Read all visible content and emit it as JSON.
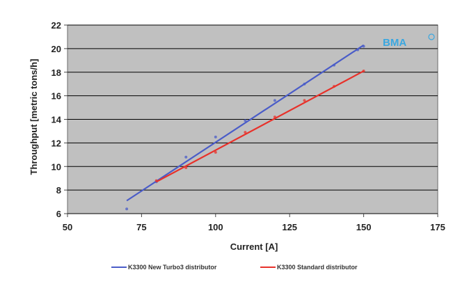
{
  "chart_data": {
    "type": "line",
    "title": "",
    "xlabel": "Current [A]",
    "ylabel": "Throughput [metric tons/h]",
    "xlim": [
      50,
      175
    ],
    "ylim": [
      6,
      22
    ],
    "xticks": [
      50,
      75,
      100,
      125,
      150,
      175
    ],
    "yticks": [
      6,
      8,
      10,
      12,
      14,
      16,
      18,
      20,
      22
    ],
    "grid": "horizontal",
    "legend_position": "bottom",
    "logo": "BMA",
    "series": [
      {
        "name": "K3300 New Turbo3 distributor",
        "color": "#4a5cc8",
        "line": [
          [
            70,
            7.1
          ],
          [
            150,
            20.3
          ]
        ],
        "points": [
          [
            70,
            6.4
          ],
          [
            80,
            8.7
          ],
          [
            90,
            10.8
          ],
          [
            100,
            12.5
          ],
          [
            110,
            13.9
          ],
          [
            120,
            15.6
          ],
          [
            130,
            17.0
          ],
          [
            140,
            18.6
          ],
          [
            148,
            19.9
          ],
          [
            150,
            20.2
          ]
        ]
      },
      {
        "name": "K3300 Standard distributor",
        "color": "#e8312a",
        "line": [
          [
            80,
            8.7
          ],
          [
            150,
            18.1
          ]
        ],
        "points": [
          [
            80,
            8.8
          ],
          [
            90,
            9.9
          ],
          [
            100,
            11.2
          ],
          [
            110,
            12.9
          ],
          [
            120,
            14.2
          ],
          [
            130,
            15.6
          ],
          [
            140,
            16.8
          ],
          [
            150,
            18.1
          ]
        ]
      }
    ],
    "colors": {
      "plot_background": "#c0c0c0",
      "gridline": "#000000",
      "logo": "#3aa7e0"
    }
  }
}
